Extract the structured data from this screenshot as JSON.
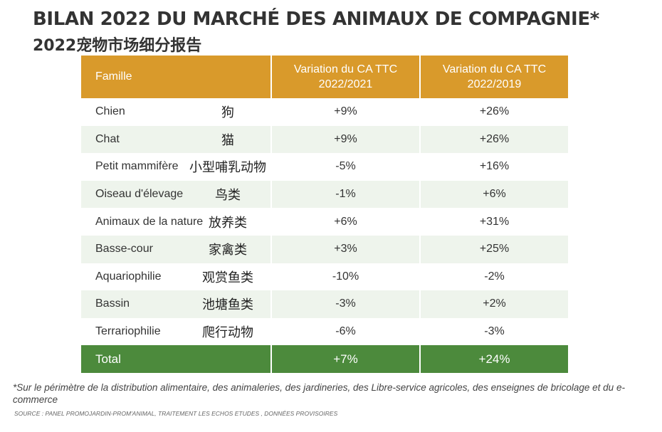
{
  "title": "BILAN 2022 DU MARCHÉ DES ANIMAUX DE COMPAGNIE*",
  "subtitle": "2022宠物市场细分报告",
  "chart_data": {
    "type": "table",
    "columns": [
      "Famille",
      "Variation du CA TTC 2022/2021",
      "Variation du CA TTC 2022/2019"
    ],
    "header": {
      "col1": "Famille",
      "col2_line1": "Variation du CA TTC",
      "col2_line2": "2022/2021",
      "col3_line1": "Variation du CA TTC",
      "col3_line2": "2022/2019"
    },
    "rows": [
      {
        "famille": "Chien",
        "zh": "狗",
        "v2021": "+9%",
        "v2019": "+26%"
      },
      {
        "famille": "Chat",
        "zh": "猫",
        "v2021": "+9%",
        "v2019": "+26%"
      },
      {
        "famille": "Petit mammifère",
        "zh": "小型哺乳动物",
        "v2021": "-5%",
        "v2019": "+16%"
      },
      {
        "famille": "Oiseau d'élevage",
        "zh": "鸟类",
        "v2021": "-1%",
        "v2019": "+6%"
      },
      {
        "famille": "Animaux de la nature",
        "zh": "放养类",
        "v2021": "+6%",
        "v2019": "+31%"
      },
      {
        "famille": "Basse-cour",
        "zh": "家禽类",
        "v2021": "+3%",
        "v2019": "+25%"
      },
      {
        "famille": "Aquariophilie",
        "zh": "观赏鱼类",
        "v2021": "-10%",
        "v2019": "-2%"
      },
      {
        "famille": "Bassin",
        "zh": "池塘鱼类",
        "v2021": "-3%",
        "v2019": "+2%"
      },
      {
        "famille": "Terrariophilie",
        "zh": "爬行动物",
        "v2021": "-6%",
        "v2019": "-3%"
      }
    ],
    "total": {
      "famille": "Total",
      "v2021": "+7%",
      "v2019": "+24%"
    }
  },
  "footnote": "*Sur le périmètre de la distribution alimentaire, des animaleries, des jardineries, des Libre-service agricoles, des enseignes de bricolage et du e-commerce",
  "source": "SOURCE : PANEL PROMOJARDIN-PROM'ANIMAL, TRAITEMENT LES ECHOS ETUDES , DONNÉES PROVISOIRES",
  "colors": {
    "header": "#d99a2b",
    "alt_row": "#eef4ec",
    "total": "#4c8a3c"
  }
}
